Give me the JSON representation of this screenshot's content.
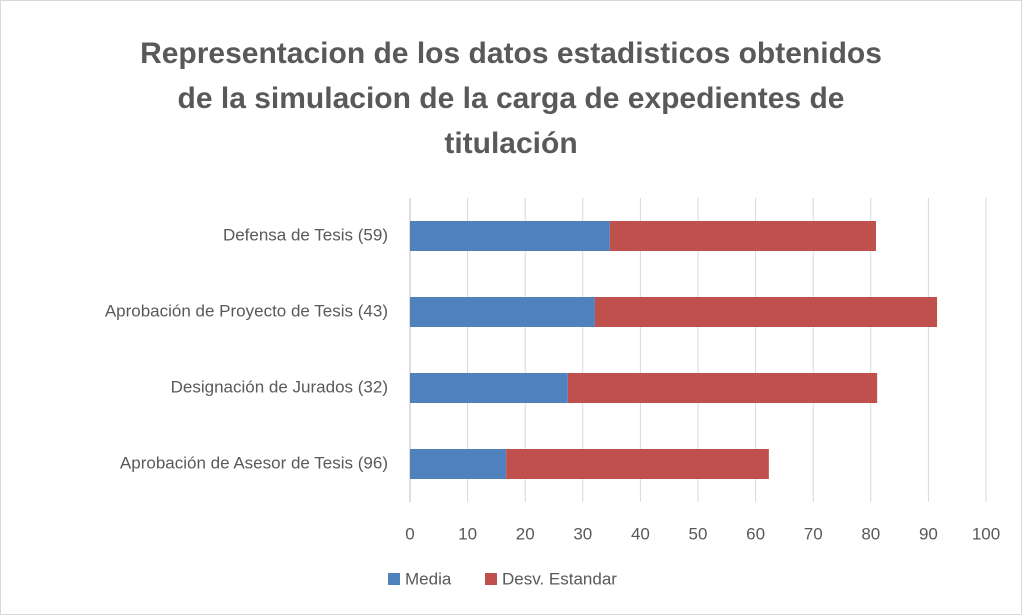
{
  "chart_data": {
    "type": "stacked-barh",
    "title": [
      "Representacion de los datos estadisticos obtenidos",
      "de la simulacion de la carga de expedientes de",
      "titulación"
    ],
    "categories": [
      "Aprobación de Asesor de Tesis (96)",
      "Designación de Jurados (32)",
      "Aprobación de Proyecto de Tesis (43)",
      "Defensa de Tesis (59)"
    ],
    "series": [
      {
        "name": "Media",
        "color": "#4f81bd",
        "values": [
          16.7,
          27.4,
          32.1,
          34.7
        ]
      },
      {
        "name": "Desv. Estandar",
        "color": "#c0504d",
        "values": [
          45.6,
          53.7,
          59.4,
          46.2
        ]
      }
    ],
    "xlim": [
      0,
      100
    ],
    "xticks": [
      0,
      10,
      20,
      30,
      40,
      50,
      60,
      70,
      80,
      90,
      100
    ],
    "grid": true,
    "legend": "bottom"
  }
}
